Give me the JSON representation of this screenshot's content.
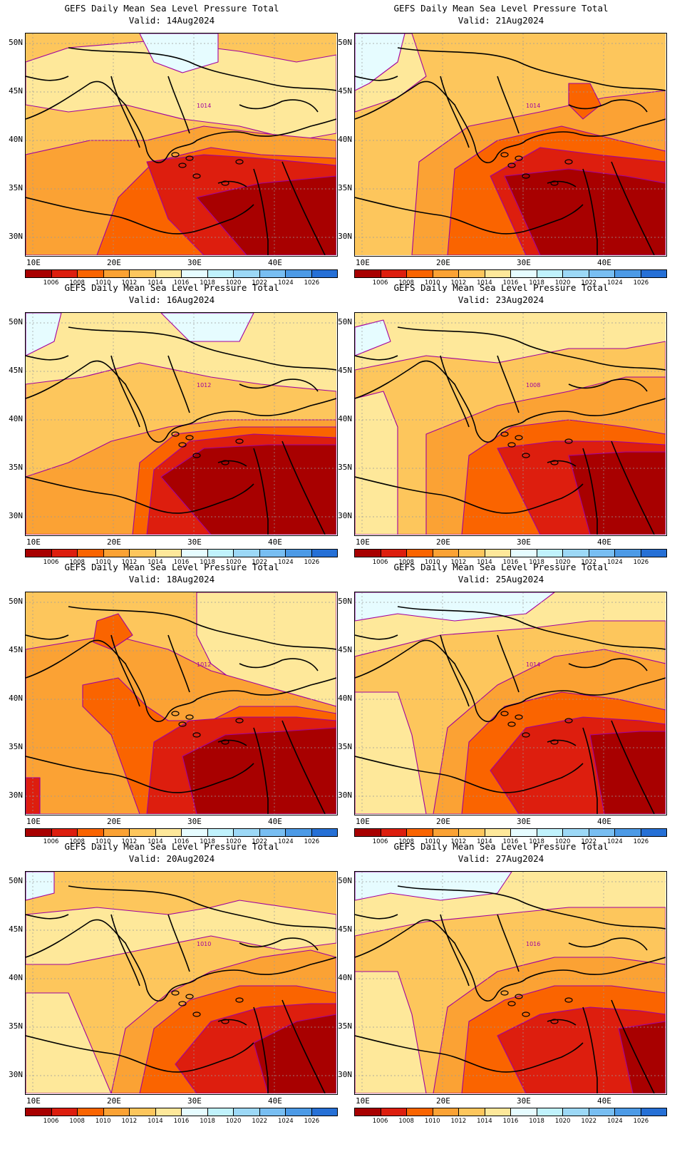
{
  "panel_title": "GEFS Daily Mean Sea Level Pressure Total",
  "lat_ticks": [
    "50N",
    "45N",
    "40N",
    "35N",
    "30N"
  ],
  "lon_ticks": [
    "10E",
    "20E",
    "30E",
    "40E"
  ],
  "colorbar": {
    "labels": [
      "1006",
      "1008",
      "1010",
      "1012",
      "1014",
      "1016",
      "1018",
      "1020",
      "1022",
      "1024",
      "1026"
    ],
    "colors": [
      "#a80000",
      "#dd1e0e",
      "#fa6400",
      "#fba234",
      "#fdc65c",
      "#fee89a",
      "#e6fcff",
      "#c0f2fc",
      "#9cd8f6",
      "#78bef2",
      "#4c9ae6",
      "#2670d6"
    ]
  },
  "colors": {
    "contour": "#a000a0",
    "coastline": "#000000",
    "grid": "#9a9a9a"
  },
  "panels": [
    {
      "valid": "Valid: 14Aug2024",
      "contour_label": "1014",
      "min_level": 1006
    },
    {
      "valid": "Valid: 21Aug2024",
      "contour_label": "1014",
      "min_level": 1006
    },
    {
      "valid": "Valid: 16Aug2024",
      "contour_label": "1012",
      "min_level": 1006
    },
    {
      "valid": "Valid: 23Aug2024",
      "contour_label": "1008",
      "min_level": 1006
    },
    {
      "valid": "Valid: 18Aug2024",
      "contour_label": "1012",
      "min_level": 1006
    },
    {
      "valid": "Valid: 25Aug2024",
      "contour_label": "1014",
      "min_level": 1006
    },
    {
      "valid": "Valid: 20Aug2024",
      "contour_label": "1010",
      "min_level": 1006
    },
    {
      "valid": "Valid: 27Aug2024",
      "contour_label": "1016",
      "min_level": 1006
    }
  ]
}
